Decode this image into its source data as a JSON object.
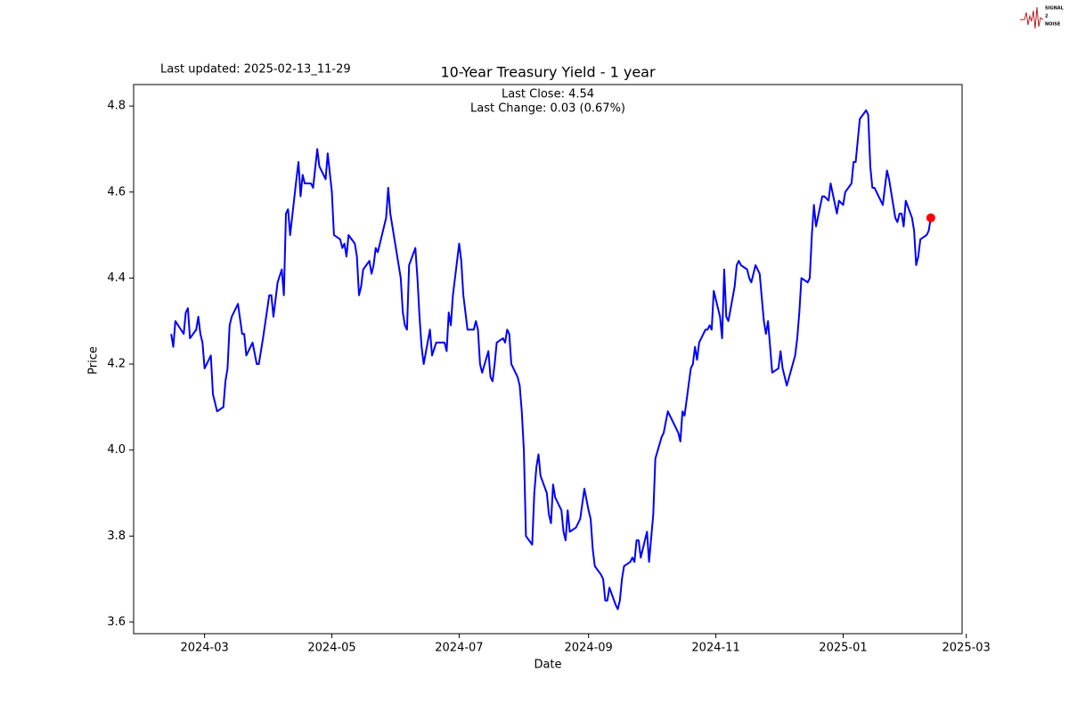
{
  "chart_data": {
    "type": "line",
    "title": "10-Year Treasury Yield - 1 year",
    "last_updated": "Last updated: 2025-02-13_11-29",
    "annotations": [
      "Last Close: 4.54",
      "Last Change: 0.03 (0.67%)"
    ],
    "x_label": "Date",
    "y_label": "Price",
    "logo": [
      "SIGNAL",
      "2",
      "NOISE"
    ],
    "color": "#0000ff",
    "last_point_color": "#ff0000",
    "grid": false,
    "xlim": [
      "2024-01-27",
      "2025-02-27"
    ],
    "xticks": [
      "2024-03",
      "2024-05",
      "2024-07",
      "2024-09",
      "2024-11",
      "2025-01",
      "2025-03"
    ],
    "ylim": [
      3.573,
      4.85
    ],
    "yticks": [
      3.6,
      3.8,
      {
        "value": 4,
        "label": "4.0"
      },
      4.2,
      4.4,
      4.6,
      4.8
    ],
    "x": [
      "2024-02-14",
      "2024-02-15",
      "2024-02-16",
      "2024-02-20",
      "2024-02-21",
      "2024-02-22",
      "2024-02-23",
      "2024-02-26",
      "2024-02-27",
      "2024-02-28",
      "2024-02-29",
      "2024-03-01",
      "2024-03-04",
      "2024-03-05",
      "2024-03-07",
      "2024-03-10",
      "2024-03-11",
      "2024-03-12",
      "2024-03-13",
      "2024-03-14",
      "2024-03-17",
      "2024-03-19",
      "2024-03-20",
      "2024-03-21",
      "2024-03-24",
      "2024-03-26",
      "2024-03-27",
      "2024-03-29",
      "2024-04-01",
      "2024-04-02",
      "2024-04-03",
      "2024-04-05",
      "2024-04-07",
      "2024-04-08",
      "2024-04-09",
      "2024-04-10",
      "2024-04-11",
      "2024-04-14",
      "2024-04-15",
      "2024-04-16",
      "2024-04-17",
      "2024-04-18",
      "2024-04-21",
      "2024-04-22",
      "2024-04-24",
      "2024-04-25",
      "2024-04-28",
      "2024-04-29",
      "2024-05-01",
      "2024-05-02",
      "2024-05-05",
      "2024-05-06",
      "2024-05-07",
      "2024-05-08",
      "2024-05-09",
      "2024-05-12",
      "2024-05-13",
      "2024-05-14",
      "2024-05-15",
      "2024-05-16",
      "2024-05-19",
      "2024-05-20",
      "2024-05-21",
      "2024-05-22",
      "2024-05-23",
      "2024-05-27",
      "2024-05-28",
      "2024-05-29",
      "2024-06-03",
      "2024-06-04",
      "2024-06-05",
      "2024-06-06",
      "2024-06-07",
      "2024-06-10",
      "2024-06-11",
      "2024-06-12",
      "2024-06-13",
      "2024-06-14",
      "2024-06-17",
      "2024-06-18",
      "2024-06-20",
      "2024-06-24",
      "2024-06-25",
      "2024-06-26",
      "2024-06-27",
      "2024-06-28",
      "2024-07-01",
      "2024-07-02",
      "2024-07-03",
      "2024-07-05",
      "2024-07-08",
      "2024-07-09",
      "2024-07-10",
      "2024-07-11",
      "2024-07-12",
      "2024-07-15",
      "2024-07-16",
      "2024-07-17",
      "2024-07-18",
      "2024-07-19",
      "2024-07-22",
      "2024-07-23",
      "2024-07-24",
      "2024-07-25",
      "2024-07-26",
      "2024-07-29",
      "2024-07-30",
      "2024-07-31",
      "2024-08-01",
      "2024-08-02",
      "2024-08-05",
      "2024-08-06",
      "2024-08-07",
      "2024-08-08",
      "2024-08-09",
      "2024-08-12",
      "2024-08-13",
      "2024-08-14",
      "2024-08-15",
      "2024-08-16",
      "2024-08-19",
      "2024-08-20",
      "2024-08-21",
      "2024-08-22",
      "2024-08-23",
      "2024-08-26",
      "2024-08-28",
      "2024-08-30",
      "2024-09-01",
      "2024-09-02",
      "2024-09-03",
      "2024-09-04",
      "2024-09-07",
      "2024-09-08",
      "2024-09-09",
      "2024-09-10",
      "2024-09-11",
      "2024-09-14",
      "2024-09-15",
      "2024-09-16",
      "2024-09-17",
      "2024-09-18",
      "2024-09-21",
      "2024-09-22",
      "2024-09-23",
      "2024-09-24",
      "2024-09-25",
      "2024-09-26",
      "2024-09-28",
      "2024-09-29",
      "2024-09-30",
      "2024-10-02",
      "2024-10-03",
      "2024-10-06",
      "2024-10-07",
      "2024-10-09",
      "2024-10-10",
      "2024-10-12",
      "2024-10-14",
      "2024-10-15",
      "2024-10-16",
      "2024-10-17",
      "2024-10-20",
      "2024-10-21",
      "2024-10-22",
      "2024-10-23",
      "2024-10-24",
      "2024-10-27",
      "2024-10-28",
      "2024-10-29",
      "2024-10-30",
      "2024-10-31",
      "2024-11-03",
      "2024-11-04",
      "2024-11-05",
      "2024-11-06",
      "2024-11-07",
      "2024-11-10",
      "2024-11-11",
      "2024-11-12",
      "2024-11-13",
      "2024-11-16",
      "2024-11-17",
      "2024-11-18",
      "2024-11-20",
      "2024-11-22",
      "2024-11-24",
      "2024-11-25",
      "2024-11-26",
      "2024-11-28",
      "2024-12-01",
      "2024-12-02",
      "2024-12-03",
      "2024-12-05",
      "2024-12-09",
      "2024-12-10",
      "2024-12-11",
      "2024-12-12",
      "2024-12-15",
      "2024-12-16",
      "2024-12-17",
      "2024-12-18",
      "2024-12-19",
      "2024-12-22",
      "2024-12-23",
      "2024-12-25",
      "2024-12-26",
      "2024-12-29",
      "2024-12-30",
      "2025-01-01",
      "2025-01-02",
      "2025-01-05",
      "2025-01-06",
      "2025-01-07",
      "2025-01-08",
      "2025-01-09",
      "2025-01-12",
      "2025-01-13",
      "2025-01-14",
      "2025-01-15",
      "2025-01-16",
      "2025-01-19",
      "2025-01-20",
      "2025-01-22",
      "2025-01-23",
      "2025-01-26",
      "2025-01-27",
      "2025-01-28",
      "2025-01-29",
      "2025-01-30",
      "2025-01-31",
      "2025-02-03",
      "2025-02-04",
      "2025-02-05",
      "2025-02-06",
      "2025-02-07",
      "2025-02-10",
      "2025-02-11",
      "2025-02-12"
    ],
    "values": [
      4.27,
      4.24,
      4.3,
      4.27,
      4.32,
      4.33,
      4.26,
      4.28,
      4.31,
      4.27,
      4.25,
      4.19,
      4.22,
      4.13,
      4.09,
      4.1,
      4.16,
      4.19,
      4.29,
      4.31,
      4.34,
      4.27,
      4.27,
      4.22,
      4.25,
      4.2,
      4.2,
      4.26,
      4.36,
      4.36,
      4.31,
      4.39,
      4.42,
      4.36,
      4.55,
      4.56,
      4.5,
      4.63,
      4.67,
      4.59,
      4.64,
      4.62,
      4.62,
      4.61,
      4.7,
      4.66,
      4.63,
      4.69,
      4.6,
      4.5,
      4.49,
      4.47,
      4.48,
      4.45,
      4.5,
      4.48,
      4.45,
      4.36,
      4.38,
      4.42,
      4.44,
      4.41,
      4.43,
      4.47,
      4.46,
      4.54,
      4.61,
      4.55,
      4.4,
      4.32,
      4.29,
      4.28,
      4.43,
      4.47,
      4.4,
      4.31,
      4.24,
      4.2,
      4.28,
      4.22,
      4.25,
      4.25,
      4.23,
      4.32,
      4.29,
      4.36,
      4.48,
      4.44,
      4.36,
      4.28,
      4.28,
      4.3,
      4.28,
      4.2,
      4.18,
      4.23,
      4.17,
      4.16,
      4.2,
      4.25,
      4.26,
      4.25,
      4.28,
      4.27,
      4.2,
      4.17,
      4.15,
      4.09,
      4.0,
      3.8,
      3.78,
      3.9,
      3.96,
      3.99,
      3.94,
      3.9,
      3.85,
      3.83,
      3.92,
      3.89,
      3.86,
      3.81,
      3.79,
      3.86,
      3.81,
      3.82,
      3.84,
      3.91,
      3.86,
      3.84,
      3.77,
      3.73,
      3.71,
      3.7,
      3.65,
      3.65,
      3.68,
      3.64,
      3.63,
      3.65,
      3.7,
      3.73,
      3.74,
      3.75,
      3.74,
      3.79,
      3.79,
      3.75,
      3.79,
      3.81,
      3.74,
      3.85,
      3.98,
      4.03,
      4.04,
      4.09,
      4.08,
      4.06,
      4.04,
      4.02,
      4.09,
      4.08,
      4.19,
      4.2,
      4.24,
      4.21,
      4.25,
      4.28,
      4.28,
      4.29,
      4.28,
      4.37,
      4.31,
      4.26,
      4.42,
      4.31,
      4.3,
      4.38,
      4.43,
      4.44,
      4.43,
      4.42,
      4.4,
      4.39,
      4.43,
      4.41,
      4.3,
      4.27,
      4.3,
      4.18,
      4.19,
      4.23,
      4.19,
      4.15,
      4.22,
      4.26,
      4.32,
      4.4,
      4.39,
      4.4,
      4.5,
      4.57,
      4.52,
      4.59,
      4.59,
      4.58,
      4.62,
      4.55,
      4.58,
      4.57,
      4.6,
      4.62,
      4.67,
      4.67,
      4.72,
      4.77,
      4.79,
      4.78,
      4.66,
      4.61,
      4.61,
      4.58,
      4.57,
      4.65,
      4.63,
      4.54,
      4.53,
      4.55,
      4.55,
      4.52,
      4.58,
      4.54,
      4.51,
      4.43,
      4.45,
      4.49,
      4.5,
      4.51,
      4.54
    ]
  }
}
